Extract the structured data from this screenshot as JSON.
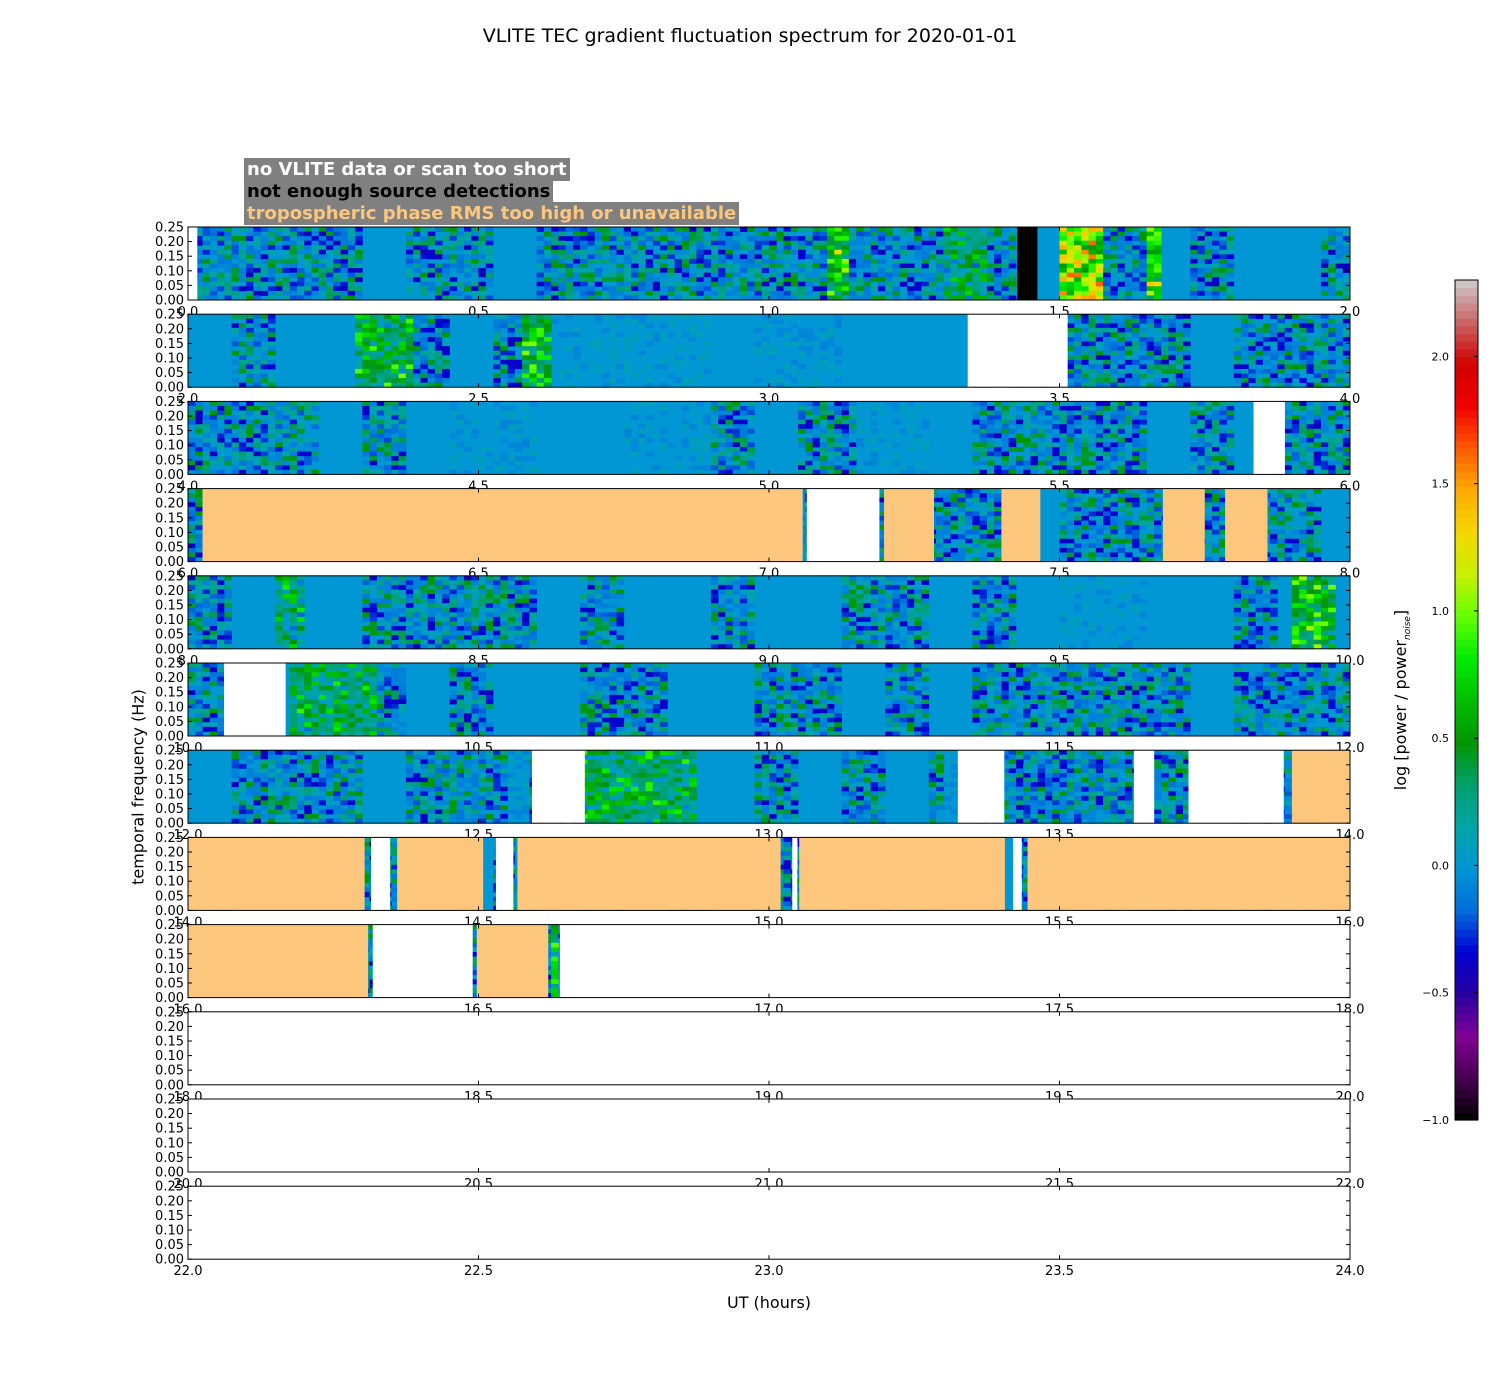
{
  "chart_data": {
    "type": "heatmap",
    "title": "VLITE TEC gradient fluctuation spectrum for 2020-01-01",
    "xlabel": "UT (hours)",
    "ylabel": "temporal frequency (Hz)",
    "colorbar": {
      "label": "log [power / power",
      "label_subscript": "noise",
      "label_suffix": "]",
      "range": [
        -1.0,
        2.3
      ],
      "ticks": [
        "−1.0",
        "−0.5",
        "0.0",
        "0.5",
        "1.0",
        "1.5",
        "2.0"
      ],
      "colormap": "nipy_spectral"
    },
    "legend": [
      {
        "label": "no VLITE data or scan too short",
        "color": "#ffffff"
      },
      {
        "label": "not enough source detections",
        "color": "#000000"
      },
      {
        "label": "tropospheric phase RMS too high or unavailable",
        "color": "#fdc67d"
      }
    ],
    "y_ticks": [
      "0.00",
      "0.05",
      "0.10",
      "0.15",
      "0.20",
      "0.25"
    ],
    "ylim": [
      0,
      0.25
    ],
    "panels": [
      {
        "xlim": [
          0,
          2
        ],
        "xticks": [
          "0.0",
          "0.5",
          "1.0",
          "1.5",
          "2.0"
        ],
        "segments": [
          [
            0,
            0.016,
            "nodata"
          ],
          [
            1.427,
            1.462,
            "nodet"
          ]
        ],
        "hotspots": [
          [
            1.1,
            1.14,
            0.7
          ],
          [
            1.5,
            1.57,
            1.1
          ],
          [
            1.65,
            1.68,
            0.9
          ],
          [
            1.3,
            1.38,
            0.35
          ]
        ]
      },
      {
        "xlim": [
          2,
          4
        ],
        "xticks": [
          "2.0",
          "2.5",
          "3.0",
          "3.5",
          "4.0"
        ],
        "segments": [
          [
            3.342,
            3.514,
            "nodata"
          ]
        ],
        "hotspots": [
          [
            2.29,
            2.39,
            0.45
          ],
          [
            2.58,
            2.62,
            0.6
          ]
        ],
        "quiet": [
          [
            2.62,
            3.34
          ]
        ]
      },
      {
        "xlim": [
          4,
          6
        ],
        "xticks": [
          "4.0",
          "4.5",
          "5.0",
          "5.5",
          "6.0"
        ],
        "segments": [
          [
            5.834,
            5.888,
            "nodata"
          ]
        ],
        "quiet": [
          [
            4.45,
            4.9
          ],
          [
            5.15,
            5.28
          ]
        ]
      },
      {
        "xlim": [
          6,
          8
        ],
        "xticks": [
          "6.0",
          "6.5",
          "7.0",
          "7.5",
          "8.0"
        ],
        "segments": [
          [
            6.025,
            7.058,
            "tropo"
          ],
          [
            7.065,
            7.19,
            "nodata"
          ],
          [
            7.198,
            7.284,
            "tropo"
          ],
          [
            7.4,
            7.467,
            "tropo"
          ],
          [
            7.678,
            7.75,
            "tropo"
          ],
          [
            7.785,
            7.858,
            "tropo"
          ]
        ],
        "quiet": [
          [
            7.0,
            7.06
          ]
        ]
      },
      {
        "xlim": [
          8,
          10
        ],
        "xticks": [
          "8.0",
          "8.5",
          "9.0",
          "9.5",
          "10.0"
        ],
        "segments": [],
        "hotspots": [
          [
            9.9,
            9.98,
            0.6
          ],
          [
            8.15,
            8.2,
            0.35
          ]
        ],
        "quiet": [
          [
            9.48,
            9.8
          ]
        ]
      },
      {
        "xlim": [
          10,
          12
        ],
        "xticks": [
          "10.0",
          "10.5",
          "11.0",
          "11.5",
          "12.0"
        ],
        "segments": [
          [
            10.062,
            10.168,
            "nodata"
          ]
        ],
        "hotspots": [
          [
            10.17,
            10.33,
            0.35
          ]
        ]
      },
      {
        "xlim": [
          12,
          14
        ],
        "xticks": [
          "12.0",
          "12.5",
          "13.0",
          "13.5",
          "14.0"
        ],
        "segments": [
          [
            12.592,
            12.683,
            "nodata"
          ],
          [
            13.325,
            13.405,
            "nodata"
          ],
          [
            13.628,
            13.663,
            "nodata"
          ],
          [
            13.722,
            13.886,
            "nodata"
          ],
          [
            13.9,
            14.0,
            "tropo"
          ]
        ],
        "hotspots": [
          [
            12.68,
            12.88,
            0.4
          ]
        ],
        "quiet": [
          [
            12.55,
            12.59
          ],
          [
            13.3,
            13.32
          ]
        ]
      },
      {
        "xlim": [
          14,
          16
        ],
        "xticks": [
          "14.0",
          "14.5",
          "15.0",
          "15.5",
          "16.0"
        ],
        "segments": [
          [
            14.0,
            14.304,
            "tropo"
          ],
          [
            14.315,
            14.348,
            "nodata"
          ],
          [
            14.36,
            14.508,
            "tropo"
          ],
          [
            14.53,
            14.56,
            "nodata"
          ],
          [
            14.567,
            15.02,
            "tropo"
          ],
          [
            15.04,
            15.049,
            "nodata"
          ],
          [
            15.052,
            15.406,
            "tropo"
          ],
          [
            15.42,
            15.435,
            "nodata"
          ],
          [
            15.445,
            16.0,
            "tropo"
          ]
        ]
      },
      {
        "xlim": [
          16,
          18
        ],
        "xticks": [
          "16.0",
          "16.5",
          "17.0",
          "17.5",
          "18.0"
        ],
        "segments": [
          [
            16.0,
            16.31,
            "tropo"
          ],
          [
            16.318,
            16.49,
            "nodata"
          ],
          [
            16.497,
            16.62,
            "tropo"
          ],
          [
            16.64,
            18.0,
            "nodata"
          ]
        ],
        "hotspots": [
          [
            16.622,
            16.64,
            0.8
          ]
        ]
      },
      {
        "xlim": [
          18,
          20
        ],
        "xticks": [
          "18.0",
          "18.5",
          "19.0",
          "19.5",
          "20.0"
        ],
        "segments": [
          [
            18.0,
            20.0,
            "nodata"
          ]
        ]
      },
      {
        "xlim": [
          20,
          22
        ],
        "xticks": [
          "20.0",
          "20.5",
          "21.0",
          "21.5",
          "22.0"
        ],
        "segments": [
          [
            20.0,
            22.0,
            "nodata"
          ]
        ]
      },
      {
        "xlim": [
          22,
          24
        ],
        "xticks": [
          "22.0",
          "22.5",
          "23.0",
          "23.5",
          "24.0"
        ],
        "segments": [
          [
            22.0,
            24.0,
            "nodata"
          ]
        ]
      }
    ]
  }
}
